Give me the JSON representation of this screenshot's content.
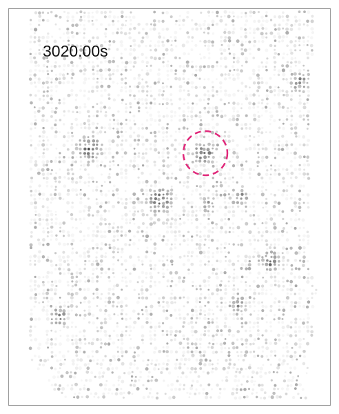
{
  "label": "3020.00s"
}
